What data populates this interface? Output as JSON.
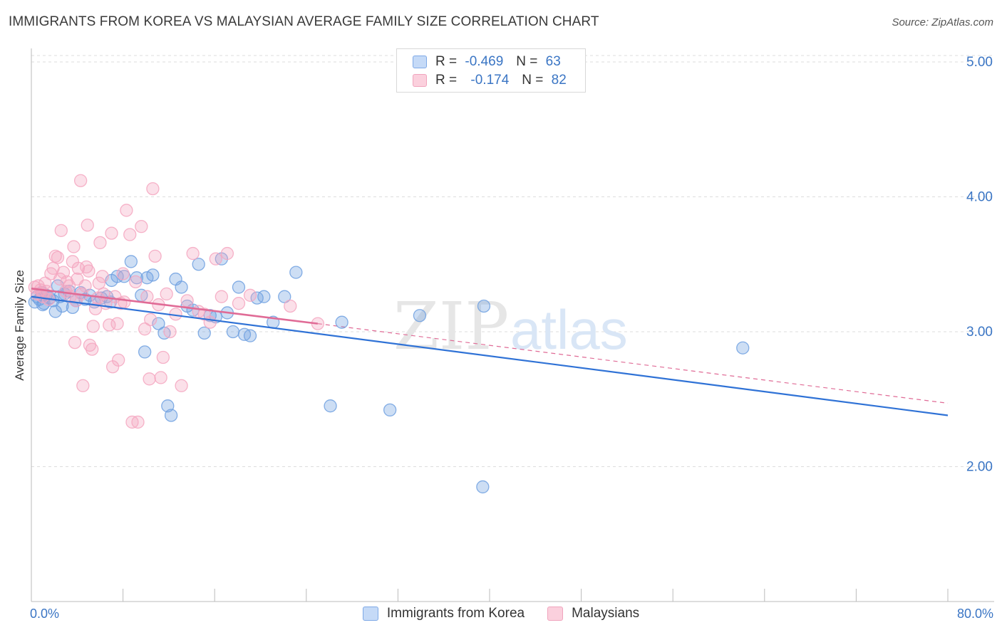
{
  "header": {
    "title": "IMMIGRANTS FROM KOREA VS MALAYSIAN AVERAGE FAMILY SIZE CORRELATION CHART",
    "source": "Source: ZipAtlas.com"
  },
  "watermark": {
    "zip": "ZIP",
    "atlas": "atlas"
  },
  "legend": {
    "rows": [
      {
        "r_label": "R =",
        "r_value": "-0.469",
        "n_label": "N =",
        "n_value": "63"
      },
      {
        "r_label": "R =",
        "r_value": "-0.174",
        "n_label": "N =",
        "n_value": "82"
      }
    ]
  },
  "chart_data": {
    "type": "scatter",
    "xlabel": "",
    "ylabel": "Average Family Size",
    "xlim": [
      0,
      80
    ],
    "ylim": [
      1.0,
      5.1
    ],
    "x_tick_labels": {
      "min": "0.0%",
      "max": "80.0%"
    },
    "y_ticks": [
      2.0,
      3.0,
      4.0,
      5.0
    ],
    "y_tick_labels": [
      "2.00",
      "3.00",
      "4.00",
      "5.00"
    ],
    "grid": true,
    "legend_position": "top-center",
    "series": [
      {
        "name": "Immigrants from Korea",
        "color": "#6fa0e0",
        "trend_color": "#2f72d6",
        "trend": {
          "x": [
            0.0,
            80.0
          ],
          "y": [
            3.26,
            2.38
          ]
        },
        "points": [
          [
            0.3,
            3.22
          ],
          [
            0.5,
            3.26
          ],
          [
            0.7,
            3.24
          ],
          [
            0.9,
            3.29
          ],
          [
            1.1,
            3.21
          ],
          [
            1.3,
            3.27
          ],
          [
            1.6,
            3.25
          ],
          [
            1.9,
            3.23
          ],
          [
            2.3,
            3.34
          ],
          [
            2.5,
            3.26
          ],
          [
            2.7,
            3.19
          ],
          [
            2.9,
            3.28
          ],
          [
            3.3,
            3.3
          ],
          [
            3.6,
            3.18
          ],
          [
            3.9,
            3.23
          ],
          [
            4.3,
            3.29
          ],
          [
            4.7,
            3.24
          ],
          [
            5.1,
            3.27
          ],
          [
            5.5,
            3.22
          ],
          [
            6.1,
            3.25
          ],
          [
            6.6,
            3.26
          ],
          [
            7.0,
            3.38
          ],
          [
            7.5,
            3.41
          ],
          [
            8.1,
            3.41
          ],
          [
            8.7,
            3.52
          ],
          [
            9.2,
            3.4
          ],
          [
            9.6,
            3.27
          ],
          [
            10.1,
            3.4
          ],
          [
            10.6,
            3.42
          ],
          [
            11.1,
            3.06
          ],
          [
            11.6,
            2.99
          ],
          [
            11.9,
            2.45
          ],
          [
            12.2,
            2.38
          ],
          [
            12.6,
            3.39
          ],
          [
            13.1,
            3.33
          ],
          [
            13.6,
            3.19
          ],
          [
            14.1,
            3.16
          ],
          [
            14.6,
            3.5
          ],
          [
            15.1,
            2.99
          ],
          [
            15.6,
            3.12
          ],
          [
            16.1,
            3.11
          ],
          [
            16.6,
            3.54
          ],
          [
            17.1,
            3.14
          ],
          [
            17.6,
            3.0
          ],
          [
            18.1,
            3.33
          ],
          [
            18.6,
            2.98
          ],
          [
            19.1,
            2.97
          ],
          [
            19.7,
            3.25
          ],
          [
            20.3,
            3.26
          ],
          [
            21.1,
            3.07
          ],
          [
            22.1,
            3.26
          ],
          [
            23.1,
            3.44
          ],
          [
            26.1,
            2.45
          ],
          [
            27.1,
            3.07
          ],
          [
            31.3,
            2.42
          ],
          [
            33.9,
            3.12
          ],
          [
            39.4,
            1.85
          ],
          [
            39.5,
            3.19
          ],
          [
            62.1,
            2.88
          ],
          [
            2.1,
            3.15
          ],
          [
            6.9,
            3.22
          ],
          [
            9.9,
            2.85
          ],
          [
            1.0,
            3.2
          ]
        ]
      },
      {
        "name": "Malaysians",
        "color": "#f4a6bf",
        "trend_color": "#e06b96",
        "trend": {
          "x": [
            0.0,
            25.0
          ],
          "y": [
            3.32,
            3.06
          ]
        },
        "trend_extended": {
          "x": [
            25.0,
            80.0
          ],
          "y": [
            3.06,
            2.47
          ]
        },
        "points": [
          [
            0.3,
            3.33
          ],
          [
            0.5,
            3.28
          ],
          [
            0.6,
            3.34
          ],
          [
            0.8,
            3.31
          ],
          [
            1.0,
            3.26
          ],
          [
            1.2,
            3.36
          ],
          [
            1.3,
            3.3
          ],
          [
            1.5,
            3.24
          ],
          [
            1.7,
            3.43
          ],
          [
            1.9,
            3.47
          ],
          [
            2.1,
            3.56
          ],
          [
            2.3,
            3.55
          ],
          [
            2.5,
            3.39
          ],
          [
            2.6,
            3.75
          ],
          [
            2.8,
            3.44
          ],
          [
            3.0,
            3.3
          ],
          [
            3.1,
            3.37
          ],
          [
            3.3,
            3.34
          ],
          [
            3.4,
            3.26
          ],
          [
            3.6,
            3.52
          ],
          [
            3.7,
            3.63
          ],
          [
            3.8,
            2.92
          ],
          [
            3.9,
            3.23
          ],
          [
            4.0,
            3.39
          ],
          [
            4.1,
            3.47
          ],
          [
            4.3,
            4.12
          ],
          [
            4.4,
            3.28
          ],
          [
            4.5,
            2.6
          ],
          [
            4.7,
            3.34
          ],
          [
            4.8,
            3.48
          ],
          [
            4.9,
            3.79
          ],
          [
            5.0,
            3.45
          ],
          [
            5.1,
            2.9
          ],
          [
            5.3,
            2.87
          ],
          [
            5.4,
            3.04
          ],
          [
            5.6,
            3.17
          ],
          [
            5.8,
            3.25
          ],
          [
            5.9,
            3.36
          ],
          [
            6.0,
            3.66
          ],
          [
            6.2,
            3.41
          ],
          [
            6.3,
            3.28
          ],
          [
            6.5,
            3.21
          ],
          [
            6.8,
            3.05
          ],
          [
            7.0,
            3.73
          ],
          [
            7.1,
            2.74
          ],
          [
            7.3,
            3.26
          ],
          [
            7.5,
            3.06
          ],
          [
            7.6,
            2.79
          ],
          [
            7.8,
            3.21
          ],
          [
            8.0,
            3.43
          ],
          [
            8.1,
            3.22
          ],
          [
            8.3,
            3.9
          ],
          [
            8.6,
            3.72
          ],
          [
            8.8,
            2.33
          ],
          [
            9.1,
            3.37
          ],
          [
            9.3,
            2.33
          ],
          [
            9.6,
            3.78
          ],
          [
            9.9,
            3.02
          ],
          [
            10.1,
            3.26
          ],
          [
            10.3,
            2.65
          ],
          [
            10.4,
            3.09
          ],
          [
            10.6,
            4.06
          ],
          [
            10.8,
            3.56
          ],
          [
            11.1,
            3.2
          ],
          [
            11.3,
            2.66
          ],
          [
            11.5,
            2.81
          ],
          [
            11.8,
            3.28
          ],
          [
            12.1,
            3.0
          ],
          [
            12.6,
            3.13
          ],
          [
            13.1,
            2.6
          ],
          [
            13.6,
            3.23
          ],
          [
            14.1,
            3.58
          ],
          [
            14.6,
            3.15
          ],
          [
            15.1,
            3.13
          ],
          [
            15.6,
            3.07
          ],
          [
            16.1,
            3.54
          ],
          [
            16.6,
            3.26
          ],
          [
            17.1,
            3.58
          ],
          [
            18.1,
            3.21
          ],
          [
            19.1,
            3.27
          ],
          [
            22.6,
            3.19
          ],
          [
            25.0,
            3.06
          ]
        ]
      }
    ]
  }
}
